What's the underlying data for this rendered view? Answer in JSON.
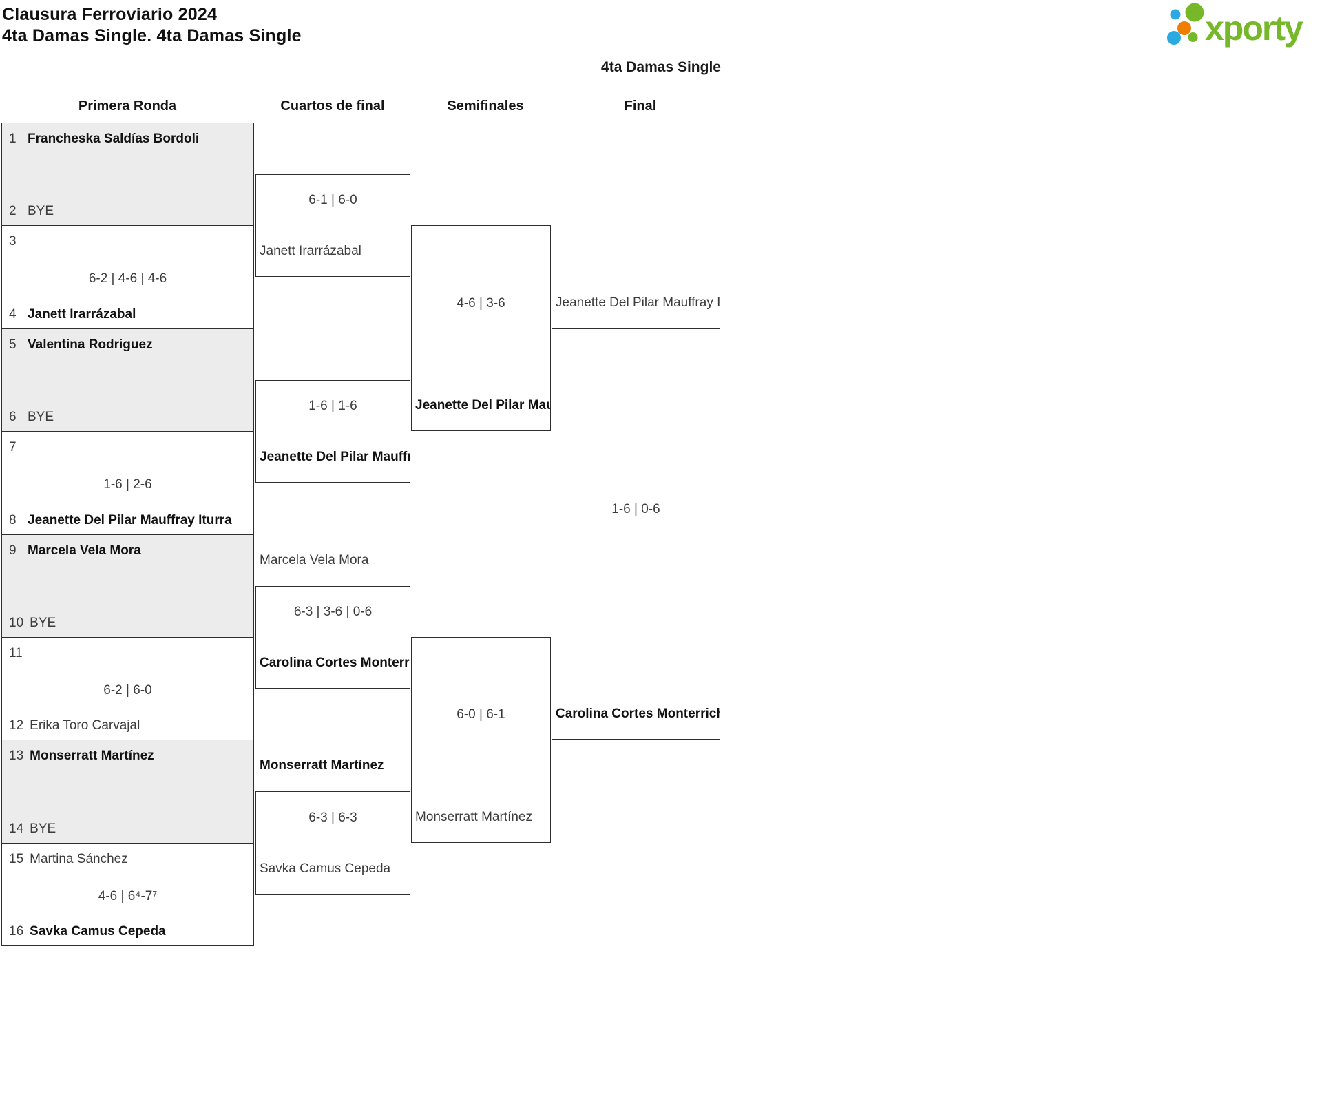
{
  "header": {
    "title": "Clausura Ferroviario 2024",
    "subtitle": "4ta Damas Single. 4ta Damas Single",
    "bracket_title": "4ta Damas Single"
  },
  "logo": {
    "text": "xporty",
    "colors": {
      "green": "#76B82A",
      "blue": "#2BA9E0",
      "orange": "#EE7D00"
    }
  },
  "round_labels": [
    "Primera Ronda",
    "Cuartos de final",
    "Semifinales",
    "Final"
  ],
  "first_round": [
    {
      "top_seed": "1",
      "top_name": "Francheska Saldías Bordoli",
      "top_winner": true,
      "score": "",
      "bottom_seed": "2",
      "bottom_name": "BYE",
      "bottom_winner": false,
      "shaded": true
    },
    {
      "top_seed": "3",
      "top_name": "",
      "top_winner": false,
      "score": "6-2 | 4-6 | 4-6",
      "bottom_seed": "4",
      "bottom_name": "Janett Irarrázabal",
      "bottom_winner": true,
      "shaded": false
    },
    {
      "top_seed": "5",
      "top_name": "Valentina Rodriguez",
      "top_winner": true,
      "score": "",
      "bottom_seed": "6",
      "bottom_name": "BYE",
      "bottom_winner": false,
      "shaded": true
    },
    {
      "top_seed": "7",
      "top_name": "",
      "top_winner": false,
      "score": "1-6 | 2-6",
      "bottom_seed": "8",
      "bottom_name": "Jeanette Del Pilar Mauffray Iturra",
      "bottom_winner": true,
      "shaded": false
    },
    {
      "top_seed": "9",
      "top_name": "Marcela Vela Mora",
      "top_winner": true,
      "score": "",
      "bottom_seed": "10",
      "bottom_name": "BYE",
      "bottom_winner": false,
      "shaded": true
    },
    {
      "top_seed": "11",
      "top_name": "",
      "top_winner": false,
      "score": "6-2 | 6-0",
      "bottom_seed": "12",
      "bottom_name": "Erika Toro Carvajal",
      "bottom_winner": false,
      "shaded": false
    },
    {
      "top_seed": "13",
      "top_name": "Monserratt Martínez",
      "top_winner": true,
      "score": "",
      "bottom_seed": "14",
      "bottom_name": "BYE",
      "bottom_winner": false,
      "shaded": true
    },
    {
      "top_seed": "15",
      "top_name": "Martina Sánchez",
      "top_winner": false,
      "score": "4-6 | 6⁴-7⁷",
      "bottom_seed": "16",
      "bottom_name": "Savka Camus Cepeda",
      "bottom_winner": true,
      "shaded": false
    }
  ],
  "quarterfinals": [
    {
      "top_name": "",
      "top_winner": false,
      "score": "6-1 | 6-0",
      "bottom_name": "Janett Irarrázabal",
      "bottom_winner": false
    },
    {
      "top_name": "",
      "top_winner": false,
      "score": "1-6 | 1-6",
      "bottom_name": "Jeanette Del Pilar Mauffray Iturra",
      "bottom_winner": true
    },
    {
      "top_name": "Marcela Vela Mora",
      "top_winner": false,
      "score": "6-3 | 3-6 | 0-6",
      "bottom_name": "Carolina Cortes Monterrichard",
      "bottom_winner": true
    },
    {
      "top_name": "Monserratt Martínez",
      "top_winner": true,
      "score": "6-3 | 6-3",
      "bottom_name": "Savka Camus Cepeda",
      "bottom_winner": false
    }
  ],
  "semifinals": [
    {
      "top_name": "",
      "top_winner": false,
      "score": "4-6 | 3-6",
      "bottom_name": "Jeanette Del Pilar Mauffray Iturra",
      "bottom_winner": true
    },
    {
      "top_name": "",
      "top_winner": false,
      "score": "6-0 | 6-1",
      "bottom_name": "Monserratt Martínez",
      "bottom_winner": false
    }
  ],
  "final": [
    {
      "top_name": "Jeanette Del Pilar Mauffray Iturra",
      "top_winner": false,
      "score": "1-6 | 0-6",
      "bottom_name": "Carolina Cortes Monterrichard",
      "bottom_winner": true
    }
  ]
}
